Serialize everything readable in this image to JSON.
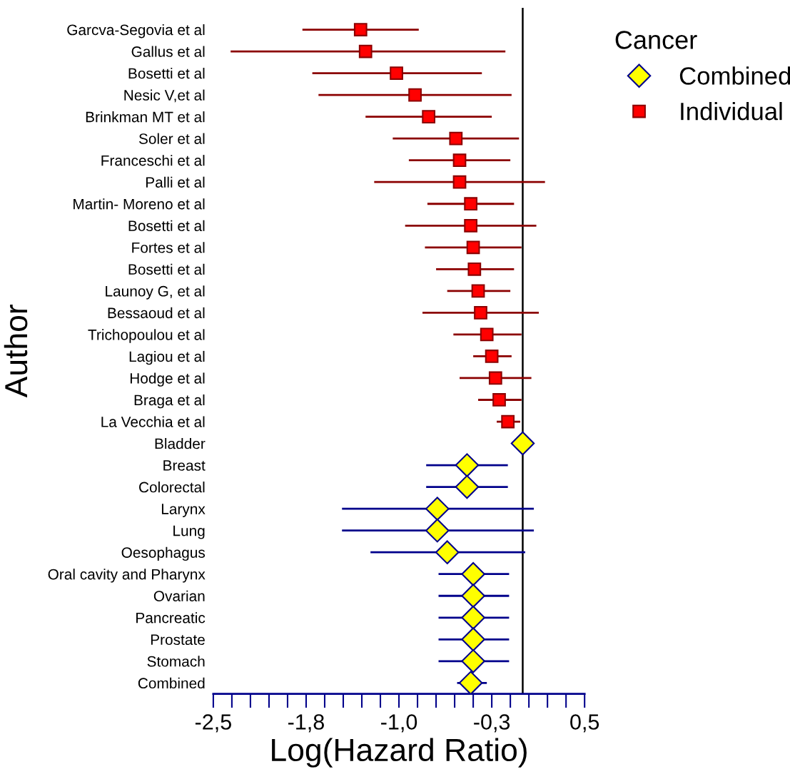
{
  "chart_data": {
    "type": "scatter",
    "orientation": "horizontal",
    "xlabel": "Log(Hazard Ratio)",
    "ylabel": "Author",
    "legend_title": "Cancer",
    "legend": "top right",
    "grid": false,
    "categories": [
      "Garcva-Segovia et al",
      "Gallus et al",
      "Bosetti et al",
      "Nesic V,et al",
      "Brinkman MT et al",
      "Soler et al",
      "Franceschi et al",
      "Palli et al",
      "Martin- Moreno et al",
      "Bosetti et al",
      "Fortes et al",
      "Bosetti et al",
      "Launoy G, et al",
      "Bessaoud et al",
      "Trichopoulou et al",
      "Lagiou et al",
      "Hodge et al",
      "Braga et al",
      "La Vecchia et al",
      "Bladder",
      "Breast",
      "Colorectal",
      "Larynx",
      "Lung",
      "Oesophagus",
      "Oral cavity and Pharynx",
      "Ovarian",
      "Pancreatic",
      "Prostate",
      "Stomach",
      "Combined"
    ],
    "xlim": [
      -2.5,
      0.5
    ],
    "xticks": [
      {
        "value": -2.5,
        "label": "-2,5"
      },
      {
        "value": -1.75,
        "label": "-1,8"
      },
      {
        "value": -1.0,
        "label": "-1,0"
      },
      {
        "value": -0.25,
        "label": "-0,3"
      },
      {
        "value": 0.5,
        "label": "0,5"
      }
    ],
    "ref_lines": [
      {
        "axis": "x",
        "value": 0,
        "color": "#000000"
      }
    ],
    "series": [
      {
        "name": "Combined",
        "color": "#ffff00",
        "marker": "diamond",
        "values": [
          null,
          null,
          null,
          null,
          null,
          null,
          null,
          null,
          null,
          null,
          null,
          null,
          null,
          null,
          null,
          null,
          null,
          null,
          null,
          0.0,
          -0.45,
          -0.45,
          -0.69,
          -0.69,
          -0.61,
          -0.4,
          -0.4,
          -0.4,
          -0.4,
          -0.4,
          -0.42
        ],
        "errors": [
          null,
          null,
          null,
          null,
          null,
          null,
          null,
          null,
          null,
          null,
          null,
          null,
          null,
          null,
          null,
          null,
          null,
          null,
          null,
          null,
          [
            -0.78,
            -0.12
          ],
          [
            -0.78,
            -0.12
          ],
          [
            -1.46,
            0.09
          ],
          [
            -1.46,
            0.09
          ],
          [
            -1.23,
            0.02
          ],
          [
            -0.68,
            -0.11
          ],
          [
            -0.68,
            -0.11
          ],
          [
            -0.68,
            -0.11
          ],
          [
            -0.68,
            -0.11
          ],
          [
            -0.68,
            -0.11
          ],
          [
            -0.53,
            -0.29
          ]
        ]
      },
      {
        "name": "Individual",
        "color": "#ff0000",
        "marker": "square",
        "values": [
          -1.31,
          -1.27,
          -1.02,
          -0.87,
          -0.76,
          -0.54,
          -0.51,
          -0.51,
          -0.42,
          -0.42,
          -0.4,
          -0.39,
          -0.36,
          -0.34,
          -0.29,
          -0.25,
          -0.22,
          -0.19,
          -0.12,
          null,
          null,
          null,
          null,
          null,
          null,
          null,
          null,
          null,
          null,
          null,
          null
        ],
        "errors": [
          [
            -1.78,
            -0.84
          ],
          [
            -2.36,
            -0.14
          ],
          [
            -1.7,
            -0.33
          ],
          [
            -1.65,
            -0.09
          ],
          [
            -1.27,
            -0.25
          ],
          [
            -1.05,
            -0.03
          ],
          [
            -0.92,
            -0.1
          ],
          [
            -1.2,
            0.18
          ],
          [
            -0.77,
            -0.07
          ],
          [
            -0.95,
            0.11
          ],
          [
            -0.79,
            -0.01
          ],
          [
            -0.7,
            -0.07
          ],
          [
            -0.61,
            -0.1
          ],
          [
            -0.81,
            0.13
          ],
          [
            -0.56,
            -0.01
          ],
          [
            -0.4,
            -0.09
          ],
          [
            -0.51,
            0.07
          ],
          [
            -0.36,
            -0.01
          ],
          [
            -0.21,
            -0.02
          ],
          null,
          null,
          null,
          null,
          null,
          null,
          null,
          null,
          null,
          null,
          null,
          null
        ]
      }
    ]
  }
}
